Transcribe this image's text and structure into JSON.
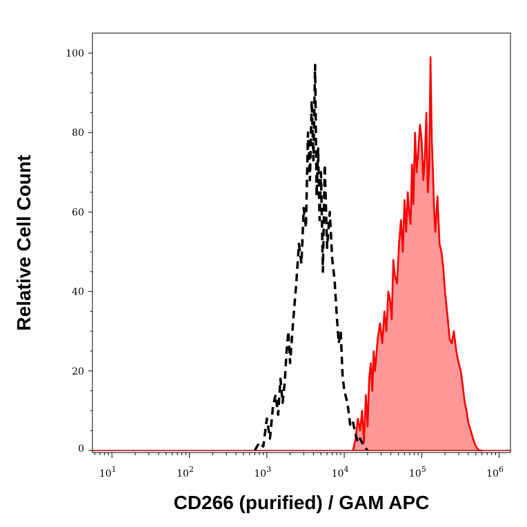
{
  "chart_data": {
    "type": "area",
    "xlabel": "CD266 (purified) / GAM APC",
    "ylabel": "Relative Cell Count",
    "xscale": "log",
    "xlim": [
      5.6,
      1400000
    ],
    "ylim": [
      0,
      100
    ],
    "y_ticks": [
      "0",
      "20",
      "40",
      "60",
      "80",
      "100"
    ],
    "x_ticks": [
      {
        "value": 10,
        "base": "10",
        "exp": "1"
      },
      {
        "value": 100,
        "base": "10",
        "exp": "2"
      },
      {
        "value": 1000,
        "base": "10",
        "exp": "3"
      },
      {
        "value": 10000,
        "base": "10",
        "exp": "4"
      },
      {
        "value": 100000,
        "base": "10",
        "exp": "5"
      },
      {
        "value": 1000000,
        "base": "10",
        "exp": "6"
      }
    ],
    "grid": false,
    "series": [
      {
        "style": "dashed-line",
        "color": "#000000",
        "x": [
          700,
          800,
          900,
          1000,
          1100,
          1200,
          1300,
          1400,
          1500,
          1600,
          1700,
          1800,
          1900,
          2000,
          2200,
          2400,
          2600,
          2800,
          3000,
          3200,
          3400,
          3600,
          3800,
          4000,
          4200,
          4400,
          4600,
          4800,
          5000,
          5300,
          5600,
          6000,
          6500,
          7000,
          7500,
          8000,
          8500,
          9000,
          9500,
          10000,
          11000,
          12000,
          13000,
          14000,
          15000,
          16000,
          18000,
          20000
        ],
        "values": [
          0,
          2,
          1,
          8,
          3,
          11,
          14,
          9,
          18,
          12,
          17,
          25,
          30,
          22,
          33,
          42,
          52,
          47,
          61,
          56,
          80,
          68,
          88,
          73,
          97,
          64,
          76,
          58,
          70,
          45,
          72,
          51,
          60,
          48,
          43,
          34,
          27,
          30,
          19,
          15,
          12,
          6,
          7,
          4,
          2,
          3,
          1,
          0
        ]
      },
      {
        "style": "filled-area",
        "color": "#ff0000",
        "fill": "#ff9999",
        "x": [
          13000,
          14000,
          15000,
          16000,
          17000,
          18000,
          19000,
          20000,
          21000,
          22000,
          23000,
          24000,
          25000,
          27000,
          29000,
          31000,
          33000,
          35000,
          37000,
          39000,
          41000,
          43000,
          45000,
          48000,
          51000,
          54000,
          57000,
          60000,
          63000,
          66000,
          69000,
          72000,
          75000,
          78000,
          82000,
          86000,
          90000,
          95000,
          100000,
          105000,
          110000,
          115000,
          120000,
          125000,
          130000,
          135000,
          140000,
          145000,
          150000,
          160000,
          170000,
          180000,
          190000,
          200000,
          215000,
          230000,
          245000,
          260000,
          280000,
          300000,
          320000,
          340000,
          360000,
          380000,
          400000,
          430000,
          460000,
          500000,
          550000,
          600000
        ],
        "values": [
          0,
          3,
          8,
          5,
          10,
          2,
          14,
          6,
          18,
          22,
          15,
          25,
          20,
          28,
          32,
          27,
          35,
          30,
          40,
          38,
          33,
          48,
          44,
          42,
          52,
          58,
          50,
          63,
          55,
          65,
          60,
          57,
          72,
          62,
          80,
          70,
          75,
          82,
          78,
          68,
          74,
          85,
          65,
          72,
          99,
          78,
          70,
          60,
          55,
          64,
          52,
          50,
          46,
          40,
          34,
          28,
          27,
          30,
          25,
          22,
          20,
          16,
          12,
          10,
          7,
          5,
          3,
          1,
          0,
          0
        ]
      }
    ]
  }
}
